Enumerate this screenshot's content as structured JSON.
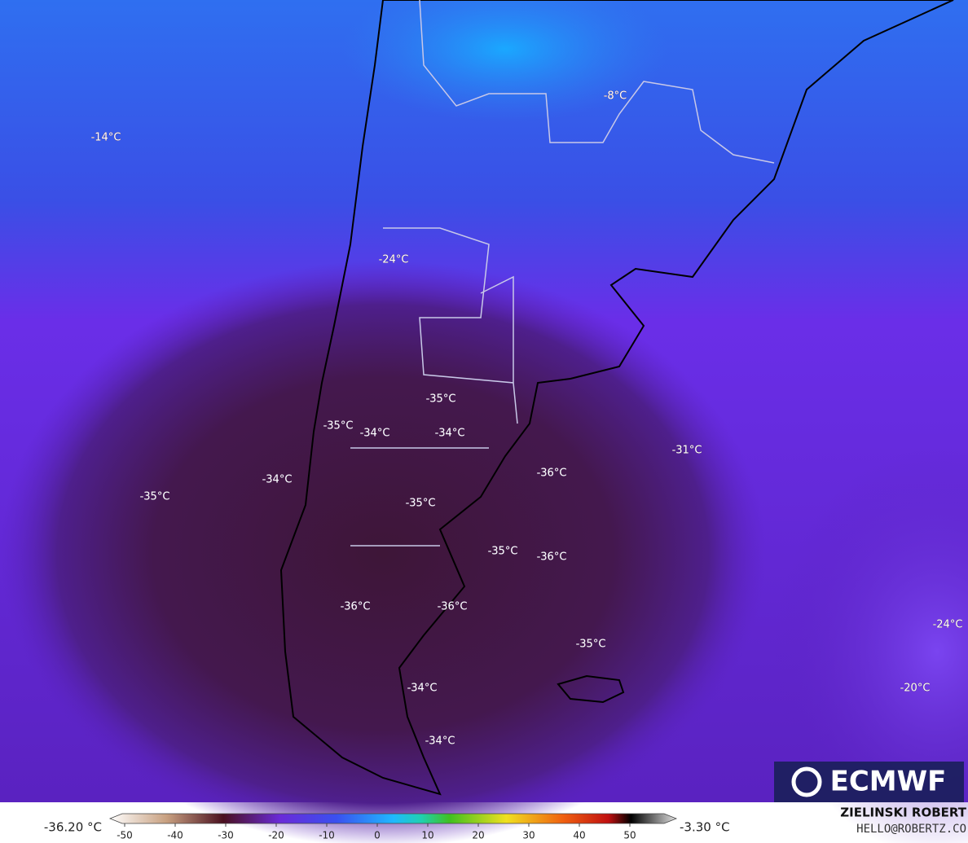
{
  "map": {
    "labels": [
      "-14°C",
      "-8°C",
      "-24°C",
      "-35°C",
      "-35°C",
      "-34°C",
      "-34°C",
      "-31°C",
      "-36°C",
      "-34°C",
      "-35°C",
      "-35°C",
      "-35°C",
      "-36°C",
      "-36°C",
      "-36°C",
      "-24°C",
      "-35°C",
      "-34°C",
      "-20°C",
      "-34°C"
    ]
  },
  "colorbar": {
    "min_label": "-36.20 °C",
    "max_label": "-3.30 °C",
    "ticks": [
      -50,
      -40,
      -30,
      -20,
      -10,
      0,
      10,
      20,
      30,
      40,
      50
    ]
  },
  "logo": "ECMWF",
  "credit": {
    "name": "ZIELINSKI ROBERT",
    "contact": "HELLO@ROBERTZ.CO"
  }
}
